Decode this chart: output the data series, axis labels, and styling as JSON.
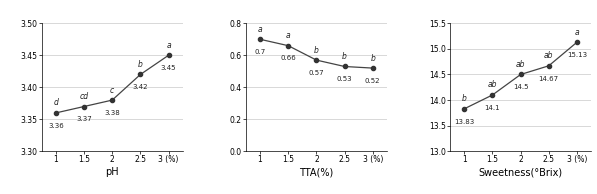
{
  "x": [
    1,
    1.5,
    2,
    2.5,
    3
  ],
  "x_labels": [
    "1",
    "1.5",
    "2",
    "2.5",
    "3 (%)"
  ],
  "ph_values": [
    3.36,
    3.37,
    3.38,
    3.42,
    3.45
  ],
  "ph_labels": [
    "3.36",
    "3.37",
    "3.38",
    "3.42",
    "3.45"
  ],
  "ph_sig": [
    "d",
    "cd",
    "c",
    "b",
    "a"
  ],
  "ph_ylim": [
    3.3,
    3.5
  ],
  "ph_yticks": [
    3.3,
    3.35,
    3.4,
    3.45,
    3.5
  ],
  "ph_xlabel": "pH",
  "tta_values": [
    0.7,
    0.66,
    0.57,
    0.53,
    0.52
  ],
  "tta_labels": [
    "0.7",
    "0.66",
    "0.57",
    "0.53",
    "0.52"
  ],
  "tta_sig": [
    "a",
    "a",
    "b",
    "b",
    "b"
  ],
  "tta_ylim": [
    0,
    0.8
  ],
  "tta_yticks": [
    0,
    0.2,
    0.4,
    0.6,
    0.8
  ],
  "tta_xlabel": "TTA(%)",
  "sw_values": [
    13.83,
    14.1,
    14.5,
    14.67,
    15.13
  ],
  "sw_labels": [
    "13.83",
    "14.1",
    "14.5",
    "14.67",
    "15.13"
  ],
  "sw_sig": [
    "b",
    "ab",
    "ab",
    "ab",
    "a"
  ],
  "sw_ylim": [
    13,
    15.5
  ],
  "sw_yticks": [
    13,
    13.5,
    14,
    14.5,
    15,
    15.5
  ],
  "sw_xlabel": "Sweetness(°Brix)",
  "line_color": "#444444",
  "marker_color": "#333333",
  "marker": "o",
  "markersize": 3,
  "linewidth": 0.9,
  "fontsize_tick": 5.5,
  "fontsize_sig": 5.5,
  "fontsize_val": 5.0,
  "fontsize_xlabel": 7.0,
  "background_color": "#ffffff"
}
